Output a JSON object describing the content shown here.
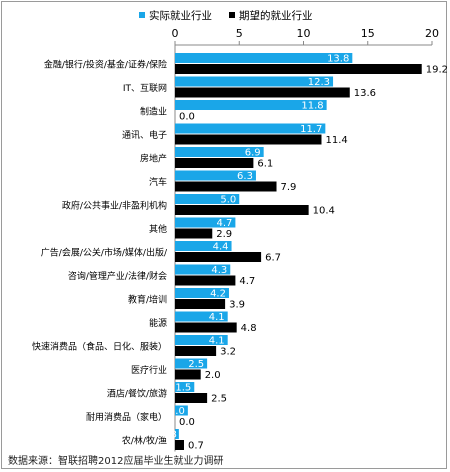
{
  "source_text": "数据来源：智联招聘2012应届毕业生就业力调研",
  "colors": {
    "actual": "#1aa6e8",
    "expected": "#000000",
    "axis": "#888888",
    "label_dark": "#000000",
    "label_light": "#ffffff"
  },
  "chart_data": {
    "type": "bar",
    "orientation": "horizontal",
    "title": "",
    "xlabel": "",
    "ylabel": "",
    "xlim": [
      0,
      20
    ],
    "xticks": [
      0,
      5,
      10,
      15,
      20
    ],
    "legend_position": "top",
    "grid": false,
    "categories": [
      "金融/银行/投资/基金/证券/保险",
      "IT、互联网",
      "制造业",
      "通讯、电子",
      "房地产",
      "汽车",
      "政府/公共事业/非盈利机构",
      "其他",
      "广告/会展/公关/市场/媒体/出版/",
      "咨询/管理产业/法律/财会",
      "教育/培训",
      "能源",
      "快速消费品（食品、日化、服装）",
      "医疗行业",
      "酒店/餐饮/旅游",
      "耐用消费品（家电）",
      "农/林/牧/渔"
    ],
    "series": [
      {
        "name": "实际就业行业",
        "values": [
          13.8,
          12.3,
          11.8,
          11.7,
          6.9,
          6.3,
          5.0,
          4.7,
          4.4,
          4.3,
          4.2,
          4.1,
          4.1,
          2.5,
          1.5,
          1.0,
          0.3
        ],
        "labels": [
          "13.8",
          "12.3",
          "11.8",
          "11.7",
          "6.9",
          "6.3",
          "5.0",
          "4.7",
          "4.4",
          "4.3",
          "4.2",
          "4.1",
          "4.1",
          "2.5",
          "1.5",
          "1.0",
          "0.3"
        ]
      },
      {
        "name": "期望的就业行业",
        "values": [
          19.2,
          13.6,
          0.0,
          11.4,
          6.1,
          7.9,
          10.4,
          2.9,
          6.7,
          4.7,
          3.9,
          4.8,
          3.2,
          2.0,
          2.5,
          0.0,
          0.7
        ],
        "labels": [
          "19.2",
          "13.6",
          "0.0",
          "11.4",
          "6.1",
          "7.9",
          "10.4",
          "2.9",
          "6.7",
          "4.7",
          "3.9",
          "4.8",
          "3.2",
          "2.0",
          "2.5",
          "0.0",
          "0.7"
        ]
      }
    ]
  }
}
